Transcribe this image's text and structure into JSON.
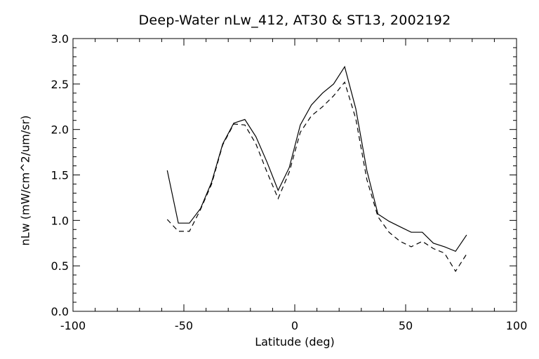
{
  "chart_data": {
    "type": "line",
    "title": "Deep-Water nLw_412, AT30 & ST13, 2002192",
    "xlabel": "Latitude (deg)",
    "ylabel": "nLw (mW/cm^2/um/sr)",
    "xlim": [
      -100,
      100
    ],
    "ylim": [
      0.0,
      3.0
    ],
    "xticks": [
      -100,
      -50,
      0,
      50,
      100
    ],
    "yticks": [
      0.0,
      0.5,
      1.0,
      1.5,
      2.0,
      2.5,
      3.0
    ],
    "xtick_labels": [
      "-100",
      "-50",
      "0",
      "50",
      "100"
    ],
    "ytick_labels": [
      "0.0",
      "0.5",
      "1.0",
      "1.5",
      "2.0",
      "2.5",
      "3.0"
    ],
    "grid": false,
    "series": [
      {
        "style": "solid",
        "color": "#000000",
        "x": [
          -57.5,
          -52.5,
          -47.5,
          -42.5,
          -37.5,
          -32.5,
          -27.5,
          -22.5,
          -17.5,
          -12.5,
          -7.5,
          -2.5,
          2.5,
          7.5,
          12.5,
          17.5,
          22.5,
          27.5,
          32.5,
          37.5,
          42.5,
          47.5,
          52.5,
          57.5,
          62.5,
          67.5,
          72.5,
          77.5
        ],
        "y": [
          1.55,
          0.97,
          0.97,
          1.13,
          1.42,
          1.84,
          2.07,
          2.11,
          1.92,
          1.64,
          1.33,
          1.58,
          2.05,
          2.27,
          2.4,
          2.5,
          2.69,
          2.23,
          1.55,
          1.07,
          0.99,
          0.93,
          0.87,
          0.87,
          0.75,
          0.71,
          0.66,
          0.84
        ]
      },
      {
        "style": "dashed",
        "color": "#000000",
        "x": [
          -57.5,
          -52.5,
          -47.5,
          -42.5,
          -37.5,
          -32.5,
          -27.5,
          -22.5,
          -17.5,
          -12.5,
          -7.5,
          -2.5,
          2.5,
          7.5,
          12.5,
          17.5,
          22.5,
          27.5,
          32.5,
          37.5,
          42.5,
          47.5,
          52.5,
          57.5,
          62.5,
          67.5,
          72.5,
          77.5
        ],
        "y": [
          1.01,
          0.88,
          0.88,
          1.12,
          1.4,
          1.83,
          2.06,
          2.05,
          1.84,
          1.53,
          1.24,
          1.53,
          1.97,
          2.15,
          2.25,
          2.37,
          2.52,
          2.12,
          1.45,
          1.04,
          0.87,
          0.77,
          0.71,
          0.77,
          0.69,
          0.64,
          0.44,
          0.63
        ]
      }
    ]
  }
}
